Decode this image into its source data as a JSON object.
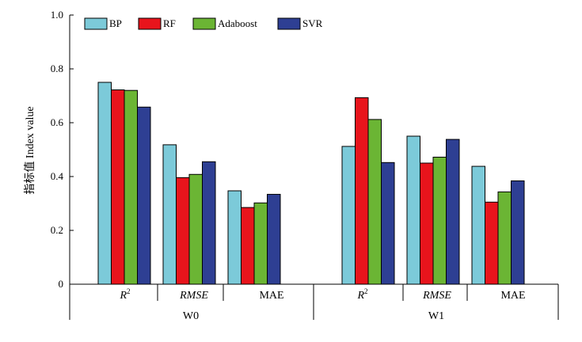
{
  "chart_data": {
    "type": "bar",
    "ylabel": "指标值 Index value",
    "ylim": [
      0,
      1.0
    ],
    "yticks": [
      0,
      0.2,
      0.4,
      0.6,
      0.8,
      1.0
    ],
    "ytick_labels": [
      "0",
      "0.2",
      "0.4",
      "0.6",
      "0.8",
      "1.0"
    ],
    "legend_position": "top-left",
    "grid": false,
    "groups": [
      {
        "label": "W0",
        "metrics": [
          {
            "label": "R",
            "sup": "2",
            "italic": true,
            "values": [
              0.75,
              0.722,
              0.72,
              0.658
            ]
          },
          {
            "label": "RMSE",
            "sup": "",
            "italic": true,
            "values": [
              0.518,
              0.396,
              0.408,
              0.455
            ]
          },
          {
            "label": "MAE",
            "sup": "",
            "italic": false,
            "values": [
              0.347,
              0.285,
              0.302,
              0.334
            ]
          }
        ]
      },
      {
        "label": "W1",
        "metrics": [
          {
            "label": "R",
            "sup": "2",
            "italic": true,
            "values": [
              0.512,
              0.693,
              0.612,
              0.452
            ]
          },
          {
            "label": "RMSE",
            "sup": "",
            "italic": true,
            "values": [
              0.55,
              0.45,
              0.472,
              0.538
            ]
          },
          {
            "label": "MAE",
            "sup": "",
            "italic": false,
            "values": [
              0.438,
              0.305,
              0.343,
              0.384
            ]
          }
        ]
      }
    ],
    "series": [
      {
        "name": "BP",
        "color": "#7ccad9"
      },
      {
        "name": "RF",
        "color": "#e8141c"
      },
      {
        "name": "Adaboost",
        "color": "#6bb534"
      },
      {
        "name": "SVR",
        "color": "#2e3f93"
      }
    ]
  }
}
